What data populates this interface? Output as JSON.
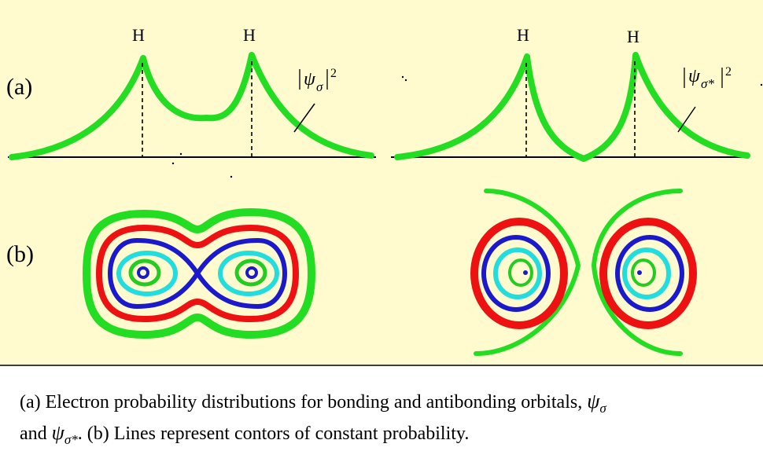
{
  "labels": {
    "part_a": "(a)",
    "part_b": "(b)",
    "nucleus": "H",
    "bonding_curve": "|ψσ|²",
    "antibonding_curve": "|ψσ*|²",
    "bonding_symbol": "ψ",
    "bonding_sub": "σ",
    "antibonding_sub": "σ*"
  },
  "caption": {
    "line1": "(a) Electron probability distributions for bonding and antibonding orbitals,",
    "line1_symbol": "ψ",
    "line1_sub": "σ",
    "line2_and": "and",
    "line2_symbol": "ψ",
    "line2_sub": "σ*",
    "line2_rest": ".  (b) Lines represent contors of constant probability."
  },
  "colors": {
    "background": "#fffbcf",
    "outer_contour": "#22dd22",
    "contour_red": "#ee1111",
    "contour_blue": "#1a1acc",
    "contour_cyan": "#22dddd",
    "contour_green": "#22cc22",
    "axis": "#000000"
  }
}
